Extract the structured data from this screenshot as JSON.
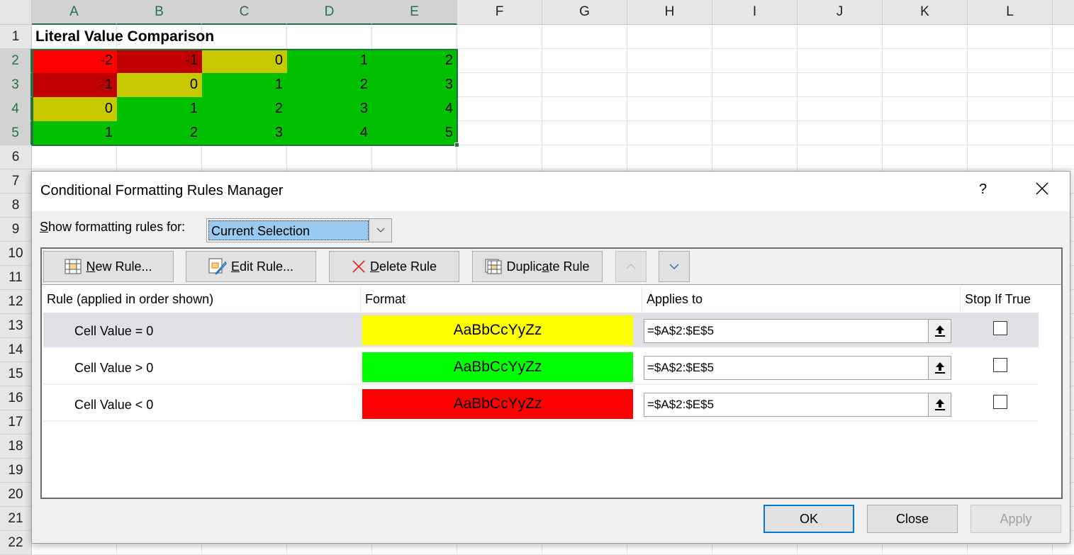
{
  "sheet": {
    "columns": [
      "A",
      "B",
      "C",
      "D",
      "E",
      "F",
      "G",
      "H",
      "I",
      "J",
      "K",
      "L"
    ],
    "rows": [
      "1",
      "2",
      "3",
      "4",
      "5",
      "6",
      "7",
      "8",
      "9",
      "10",
      "11",
      "12",
      "13",
      "14",
      "15",
      "16",
      "17",
      "18",
      "19",
      "20",
      "21",
      "22"
    ],
    "title_cell": "Literal Value Comparison",
    "values": [
      [
        -2,
        -1,
        0,
        1,
        2
      ],
      [
        -1,
        0,
        1,
        2,
        3
      ],
      [
        0,
        1,
        2,
        3,
        4
      ],
      [
        1,
        2,
        3,
        4,
        5
      ]
    ],
    "colors": {
      "negative_2": "#ff0000",
      "negative": "#c00000",
      "zero": "#c8c800",
      "positive": "#00c000",
      "accent": "#217346"
    }
  },
  "dialog": {
    "title": "Conditional Formatting Rules Manager",
    "help": "?",
    "close_icon": "close-icon",
    "show_label": "Show formatting rules for:",
    "show_value": "Current Selection",
    "toolbar": {
      "new_rule": "New Rule...",
      "edit_rule": "Edit Rule...",
      "delete_rule": "Delete Rule",
      "duplicate_rule": "Duplicate Rule"
    },
    "headers": {
      "rule": "Rule (applied in order shown)",
      "format": "Format",
      "applies": "Applies to",
      "stop": "Stop If True"
    },
    "rules": [
      {
        "rule": "Cell Value = 0",
        "preview": "AaBbCcYyZz",
        "color": "#ffff00",
        "applies": "=$A$2:$E$5",
        "stop": false,
        "selected": true
      },
      {
        "rule": "Cell Value > 0",
        "preview": "AaBbCcYyZz",
        "color": "#00ff00",
        "applies": "=$A$2:$E$5",
        "stop": false,
        "selected": false
      },
      {
        "rule": "Cell Value < 0",
        "preview": "AaBbCcYyZz",
        "color": "#ff0000",
        "applies": "=$A$2:$E$5",
        "stop": false,
        "selected": false
      }
    ],
    "ok": "OK",
    "close": "Close",
    "apply": "Apply"
  }
}
